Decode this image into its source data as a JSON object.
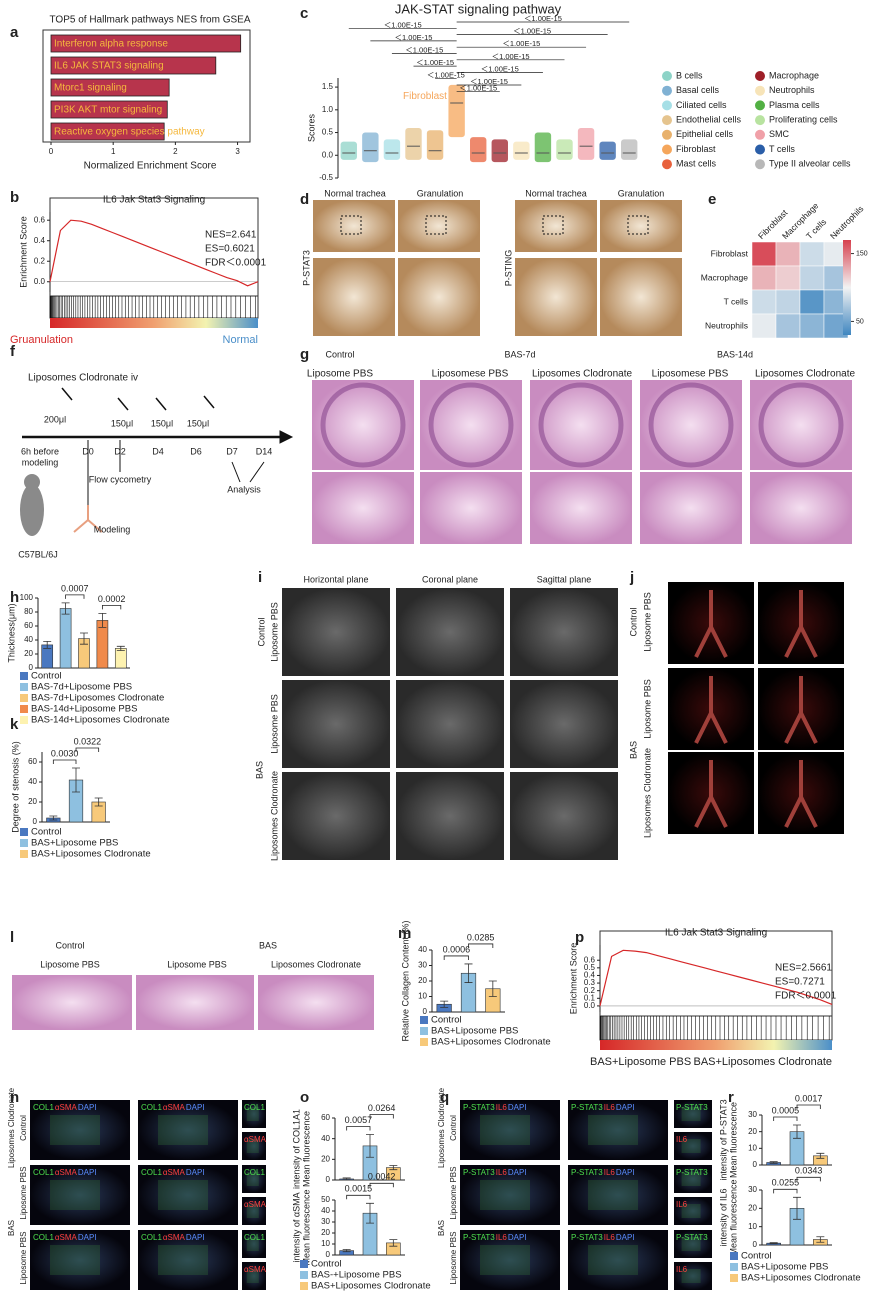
{
  "letters": [
    "a",
    "b",
    "c",
    "d",
    "e",
    "f",
    "g",
    "h",
    "i",
    "j",
    "k",
    "l",
    "m",
    "n",
    "o",
    "p",
    "q",
    "r"
  ],
  "labels": {
    "d": [
      "Normal trachea",
      "Granulation",
      "Normal trachea",
      "Granulation",
      "P-STAT3",
      "P-STING"
    ],
    "f": [
      "Liposomes Clodronate iv",
      "200μl",
      "150μl",
      "150μl",
      "150μl",
      "6h before",
      "modeling",
      "D0",
      "D2",
      "D4",
      "D6",
      "D7",
      "D14",
      "Flow cycometry",
      "Analysis",
      "Modeling",
      "C57BL/6J"
    ],
    "g": [
      "Control",
      "BAS-7d",
      "BAS-14d",
      "Liposome PBS",
      "Liposomese PBS",
      "Liposomes Clodronate",
      "Liposomese PBS",
      "Liposomes Clodronate"
    ],
    "i": [
      "Horizontal plane",
      "Coronal plane",
      "Sagittal plane",
      "Control",
      "Liposome PBS",
      "Liposome PBS",
      "Liposomes Clodronate",
      "BAS"
    ],
    "j": [
      "Control",
      "Liposome PBS",
      "Liposome PBS",
      "Liposomes Clodronate",
      "BAS"
    ],
    "l": [
      "Control",
      "BAS",
      "Liposome PBS",
      "Liposome PBS",
      "Liposomes Clodronate"
    ],
    "n": {
      "stain": [
        "COL1",
        "αSMA",
        "DAPI"
      ],
      "rows": [
        "Control",
        "Liposome PBS",
        "Liposome PBS",
        "Liposomes Clodronate",
        "BAS"
      ]
    },
    "q": {
      "stain": [
        "P-STAT3",
        "IL6",
        "DAPI"
      ],
      "rows": [
        "Control",
        "Liposome PBS",
        "Liposome PBS",
        "Liposomes Clodronate",
        "BAS"
      ]
    }
  },
  "chart_data": [
    {
      "type": "barh",
      "title": "TOP5 of Hallmark pathways NES from GSEA",
      "categories": [
        "Interferon alpha response",
        "IL6 JAK STAT3 signaling",
        "Mtorc1 signaling",
        "PI3K AKT mtor signaling",
        "Reactive oxygen species pathway"
      ],
      "values": [
        3.05,
        2.65,
        1.9,
        1.87,
        1.82
      ],
      "color": "#b7344c",
      "label_color": "#f5b83d",
      "xlim": [
        0,
        3.2
      ],
      "xticks": [
        0,
        1,
        2,
        3
      ],
      "xlabel": "Normalized Enrichment Score"
    },
    {
      "type": "line",
      "title": "IL6 Jak Stat3 Signaling",
      "ylabel": "Enrichment Score",
      "x": [
        0,
        5,
        10,
        15,
        20,
        25,
        30,
        35,
        40,
        45,
        50,
        55,
        60,
        65,
        70,
        75,
        80,
        85,
        90,
        95,
        100
      ],
      "values": [
        0,
        0.5,
        0.6,
        0.59,
        0.56,
        0.52,
        0.48,
        0.44,
        0.4,
        0.36,
        0.32,
        0.28,
        0.24,
        0.2,
        0.16,
        0.12,
        0.08,
        0.04,
        0.01,
        -0.04,
        0
      ],
      "xlim": [
        0,
        100
      ],
      "ylim": [
        -0.1,
        0.68
      ],
      "yticks": [
        {
          "value": 0,
          "label": "0.0"
        },
        0.2,
        0.4,
        0.6
      ],
      "color": "#d62728",
      "annotations": [
        "NES=2.641",
        "ES=0.6021",
        "FDR＜0.0001"
      ],
      "end_labels": [
        "Gruanulation",
        "Normal"
      ],
      "end_label_colors": [
        "#d62728",
        "#4b8fc9"
      ]
    },
    {
      "type": "strip",
      "title": "JAK-STAT signaling pathway",
      "ylabel": "Scores",
      "categories": [
        "B cells",
        "Basal cells",
        "Ciliated cells",
        "Endothelial cells",
        "Epithelial cells",
        "Fibroblast",
        "Mast cells",
        "Macrophage",
        "Neutrophils",
        "Plasma cells",
        "Proliferating cells",
        "SMC",
        "T cells",
        "Type II alveolar cells"
      ],
      "colors": [
        "#8dd3c7",
        "#80b1d3",
        "#a6dfe6",
        "#e5c48e",
        "#e8b16c",
        "#f5a65b",
        "#e8613c",
        "#9e1f28",
        "#f7e4b8",
        "#52b043",
        "#b8e3a0",
        "#f0a0a8",
        "#2a5ea8",
        "#b8b8b8"
      ],
      "values": [
        0.05,
        0.1,
        0.05,
        0.2,
        0.1,
        1.15,
        0.05,
        0.05,
        0.05,
        0.05,
        0.05,
        0.2,
        0.05,
        0.05
      ],
      "upper": [
        0.3,
        0.5,
        0.35,
        0.6,
        0.55,
        1.55,
        0.4,
        0.35,
        0.3,
        0.5,
        0.35,
        0.6,
        0.3,
        0.35
      ],
      "lower": [
        -0.1,
        -0.15,
        -0.1,
        -0.1,
        -0.1,
        0.4,
        -0.15,
        -0.15,
        -0.1,
        -0.15,
        -0.1,
        -0.1,
        -0.1,
        -0.1
      ],
      "ylim": [
        -0.5,
        1.7
      ],
      "yticks": [
        -0.5,
        {
          "value": 0,
          "label": "0.0"
        },
        0.5,
        {
          "value": 1,
          "label": "1.0"
        },
        1.5
      ],
      "annotations": [
        "＜1.00E-15",
        "＜1.00E-15",
        "＜1.00E-15",
        "＜1.00E-15",
        "＜1.00E-15",
        "＜1.00E-15",
        "＜1.00E-15",
        "＜1.00E-15",
        "＜1.00E-15",
        "＜1.00E-15",
        "＜1.00E-15",
        "＜1.00E-15"
      ]
    },
    {
      "type": "heatmap",
      "rows": [
        "Fibroblast",
        "Macrophage",
        "T cells",
        "Neutrophils"
      ],
      "columns": [
        "Fibroblast",
        "Macrophage",
        "T cells",
        "Neutrophils"
      ],
      "values": [
        [
          165,
          125,
          85,
          95
        ],
        [
          125,
          115,
          80,
          70
        ],
        [
          85,
          80,
          40,
          60
        ],
        [
          95,
          70,
          60,
          50
        ]
      ],
      "clim": [
        30,
        170
      ],
      "cticks": [
        50,
        150
      ],
      "colors": [
        "#3f86c0",
        "#f3f3f3",
        "#d6404e"
      ]
    },
    {
      "type": "bar",
      "ylabel": "Thickness(μm)",
      "categories": [
        "Control",
        "BAS-7d+Liposome PBS",
        "BAS-7d+Liposomes Clodronate",
        "BAS-14d+Liposome PBS",
        "BAS-14d+Liposomes Clodronate"
      ],
      "values": [
        33,
        85,
        42,
        68,
        28
      ],
      "errors": [
        5,
        8,
        8,
        10,
        3
      ],
      "colors": [
        "#4a78c0",
        "#8ec0e0",
        "#f7c97a",
        "#f08a4b",
        "#fdf2b0"
      ],
      "ylim": [
        0,
        100
      ],
      "yticks": [
        0,
        20,
        40,
        60,
        80,
        100
      ],
      "annotations": [
        "0.0007",
        "0.0002"
      ]
    },
    {
      "type": "bar",
      "ylabel": "Degree of  stenosis  (%)",
      "categories": [
        "Control",
        "BAS+Liposome PBS",
        "BAS+Liposomes Clodronate"
      ],
      "values": [
        4,
        42,
        20
      ],
      "errors": [
        2,
        12,
        4
      ],
      "colors": [
        "#4a78c0",
        "#8ec0e0",
        "#f7c97a"
      ],
      "ylim": [
        0,
        70
      ],
      "yticks": [
        0,
        20,
        40,
        60
      ],
      "annotations": [
        "0.0030",
        "0.0322"
      ]
    },
    {
      "type": "bar",
      "ylabel": "Relative Collagen Content  (%)",
      "categories": [
        "Control",
        "BAS+Liposome PBS",
        "BAS+Liposomes Clodronate"
      ],
      "values": [
        5,
        25,
        15
      ],
      "errors": [
        2,
        6,
        5
      ],
      "colors": [
        "#4a78c0",
        "#8ec0e0",
        "#f7c97a"
      ],
      "ylim": [
        0,
        40
      ],
      "yticks": [
        0,
        10,
        20,
        30,
        40
      ],
      "annotations": [
        "0.0006",
        "0.0285"
      ]
    },
    {
      "type": "bar",
      "ylabel": [
        "Mean fluorescence",
        "intensity of COL1A1"
      ],
      "values": [
        1,
        33,
        12
      ],
      "errors": [
        1,
        11,
        2
      ],
      "colors": [
        "#4a78c0",
        "#8ec0e0",
        "#f7c97a"
      ],
      "ylim": [
        0,
        60
      ],
      "yticks": [
        0,
        20,
        40,
        60
      ],
      "annotations": [
        "0.0057",
        "0.0264"
      ]
    },
    {
      "type": "bar",
      "ylabel": [
        "Mean fluorescence",
        "intensity of αSMA"
      ],
      "categories": [
        "Control",
        "BAS-+Liposome PBS",
        "BAS+Liposomes Clodronate"
      ],
      "values": [
        4,
        38,
        11
      ],
      "errors": [
        1,
        9,
        3
      ],
      "colors": [
        "#4a78c0",
        "#8ec0e0",
        "#f7c97a"
      ],
      "ylim": [
        0,
        50
      ],
      "yticks": [
        0,
        10,
        20,
        30,
        40,
        50
      ],
      "annotations": [
        "0.0015",
        "0.0042"
      ]
    },
    {
      "type": "bar",
      "ylabel": [
        "Mean fluorescence",
        "intensity of P-STAT3"
      ],
      "values": [
        1.5,
        20,
        5.5
      ],
      "errors": [
        0.5,
        4,
        1.5
      ],
      "colors": [
        "#4a78c0",
        "#8ec0e0",
        "#f7c97a"
      ],
      "ylim": [
        0,
        30
      ],
      "yticks": [
        0,
        10,
        20,
        30
      ],
      "annotations": [
        "0.0005",
        "0.0017"
      ]
    },
    {
      "type": "bar",
      "ylabel": [
        "Mean fluorescence",
        "intensity of IL6"
      ],
      "categories": [
        "Control",
        "BAS+Liposome PBS",
        "BAS+Liposomes Clodronate"
      ],
      "values": [
        1,
        20,
        3
      ],
      "errors": [
        0.3,
        6,
        1.5
      ],
      "colors": [
        "#4a78c0",
        "#8ec0e0",
        "#f7c97a"
      ],
      "ylim": [
        0,
        30
      ],
      "yticks": [
        0,
        10,
        20,
        30
      ],
      "annotations": [
        "0.0255",
        "0.0343"
      ]
    },
    {
      "type": "line",
      "title": "IL6 Jak Stat3 Signaling",
      "ylabel": "Enrichment Score",
      "x": [
        0,
        5,
        10,
        15,
        20,
        25,
        30,
        35,
        40,
        45,
        50,
        55,
        60,
        65,
        70,
        75,
        80,
        85,
        90,
        95,
        100
      ],
      "values": [
        0,
        0.65,
        0.73,
        0.72,
        0.7,
        0.66,
        0.62,
        0.58,
        0.54,
        0.5,
        0.46,
        0.42,
        0.38,
        0.34,
        0.3,
        0.26,
        0.22,
        0.18,
        0.13,
        0.08,
        0.02
      ],
      "xlim": [
        0,
        100
      ],
      "ylim": [
        -0.08,
        0.8
      ],
      "yticks": [
        {
          "value": 0,
          "label": "0.0"
        },
        0.1,
        0.2,
        0.3,
        0.4,
        0.5,
        0.6
      ],
      "color": "#d62728",
      "annotations": [
        "NES=2.5661",
        "ES=0.7271",
        "FDR＜0.0001"
      ],
      "end_labels": [
        "BAS+Liposome PBS",
        "BAS+Liposomes Clodronate"
      ],
      "end_label_colors": [
        "#222222",
        "#222222"
      ]
    }
  ]
}
